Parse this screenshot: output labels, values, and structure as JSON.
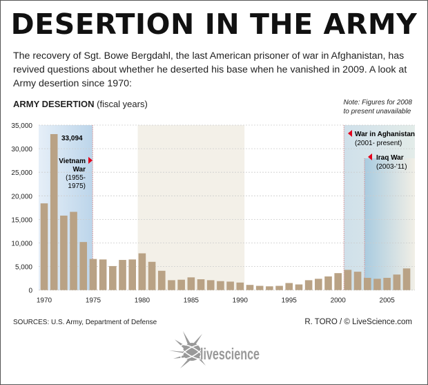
{
  "title": "DESERTION IN THE ARMY",
  "intro": "The recovery of Sgt. Bowe Bergdahl, the last American prisoner of war in Afghanistan, has revived questions about whether he deserted his base when he vanished in 2009. A look at Army desertion since 1970:",
  "note": [
    "Note: Figures for 2008",
    "to present unavailable"
  ],
  "sources": "SOURCES: U.S. Army, Department of Defense",
  "credit": "R. TORO / © LiveScience.com",
  "logo_text": "livescience",
  "chart_data": {
    "type": "bar",
    "title": "ARMY DESERTION",
    "subtitle": "(fiscal years)",
    "x": [
      1970,
      1971,
      1972,
      1973,
      1974,
      1975,
      1976,
      1977,
      1978,
      1979,
      1980,
      1981,
      1982,
      1983,
      1984,
      1985,
      1986,
      1987,
      1988,
      1989,
      1990,
      1991,
      1992,
      1993,
      1994,
      1995,
      1996,
      1997,
      1998,
      1999,
      2000,
      2001,
      2002,
      2003,
      2004,
      2005,
      2006,
      2007
    ],
    "values": [
      18400,
      33094,
      15800,
      16600,
      10200,
      6600,
      6500,
      5100,
      6400,
      6500,
      7800,
      6000,
      4100,
      2100,
      2200,
      2700,
      2300,
      2100,
      1900,
      1800,
      1600,
      1100,
      900,
      800,
      900,
      1500,
      1200,
      2100,
      2400,
      2900,
      3600,
      4300,
      3900,
      2600,
      2400,
      2600,
      3300,
      4600
    ],
    "ylim": [
      0,
      35000
    ],
    "yticks": [
      "0",
      "5,000",
      "10,000",
      "15,000",
      "20,000",
      "25,000",
      "30,000",
      "35,000"
    ],
    "xticks": [
      "1970",
      "1975",
      "1980",
      "1985",
      "1990",
      "1995",
      "2000",
      "2005"
    ],
    "grid": true,
    "bar_color": "#b9a285",
    "annotations": {
      "peak_label": "33,094",
      "vietnam": {
        "name_lines": [
          "Vietnam",
          "War"
        ],
        "years_lines": [
          "(1955-",
          "1975)"
        ],
        "color": "#c7dcef"
      },
      "afghanistan": {
        "name": "War in Aghanistan",
        "years": "(2001- present)",
        "color": "#c9dce6"
      },
      "iraq": {
        "name": "Iraq War",
        "years": "(2003-'11)",
        "color": "#b9d4e4"
      },
      "arrow_color": "#e3001b",
      "band_color": "#f3f0e8"
    }
  }
}
